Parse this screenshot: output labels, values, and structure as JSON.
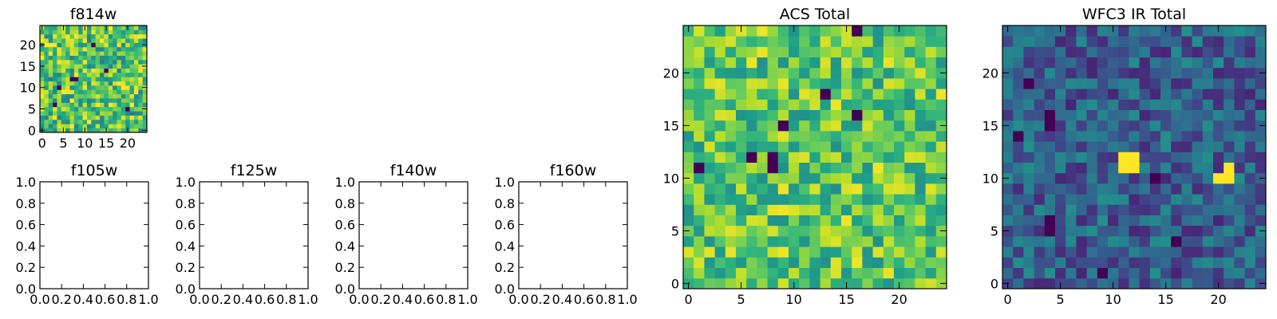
{
  "chart_data": [
    {
      "type": "heatmap",
      "title": "f814w",
      "colormap": "viridis",
      "grid_size": 25,
      "xlim": [
        -0.5,
        24.5
      ],
      "ylim": [
        -0.5,
        24.5
      ],
      "xticks": [
        0,
        5,
        10,
        15,
        20
      ],
      "yticks": [
        0,
        5,
        10,
        15,
        20
      ],
      "seed": 11,
      "base": 0.72,
      "spread": 0.28,
      "dark_cells": [
        [
          4,
          10
        ],
        [
          7,
          12
        ],
        [
          8,
          12
        ],
        [
          12,
          20
        ],
        [
          20,
          5
        ],
        [
          15,
          14
        ],
        [
          3,
          6
        ]
      ]
    },
    {
      "type": "heatmap",
      "title": "f105w",
      "empty": true,
      "xlim": [
        0,
        1
      ],
      "ylim": [
        0,
        1
      ],
      "xtick_labels": [
        "0.0",
        "0.2",
        "0.4",
        "0.6",
        "0.8",
        "1.0"
      ],
      "ytick_labels": [
        "0.0",
        "0.2",
        "0.4",
        "0.6",
        "0.8",
        "1.0"
      ]
    },
    {
      "type": "heatmap",
      "title": "f125w",
      "empty": true,
      "xlim": [
        0,
        1
      ],
      "ylim": [
        0,
        1
      ],
      "xtick_labels": [
        "0.0",
        "0.2",
        "0.4",
        "0.6",
        "0.8",
        "1.0"
      ],
      "ytick_labels": [
        "0.0",
        "0.2",
        "0.4",
        "0.6",
        "0.8",
        "1.0"
      ]
    },
    {
      "type": "heatmap",
      "title": "f140w",
      "empty": true,
      "xlim": [
        0,
        1
      ],
      "ylim": [
        0,
        1
      ],
      "xtick_labels": [
        "0.0",
        "0.2",
        "0.4",
        "0.6",
        "0.8",
        "1.0"
      ],
      "ytick_labels": [
        "0.0",
        "0.2",
        "0.4",
        "0.6",
        "0.8",
        "1.0"
      ]
    },
    {
      "type": "heatmap",
      "title": "f160w",
      "empty": true,
      "xlim": [
        0,
        1
      ],
      "ylim": [
        0,
        1
      ],
      "xtick_labels": [
        "0.0",
        "0.2",
        "0.4",
        "0.6",
        "0.8",
        "1.0"
      ],
      "ytick_labels": [
        "0.0",
        "0.2",
        "0.4",
        "0.6",
        "0.8",
        "1.0"
      ]
    },
    {
      "type": "heatmap",
      "title": "ACS Total",
      "colormap": "viridis",
      "grid_size": 25,
      "xlim": [
        -0.5,
        24.5
      ],
      "ylim": [
        -0.5,
        24.5
      ],
      "xticks": [
        0,
        5,
        10,
        15,
        20
      ],
      "yticks": [
        0,
        5,
        10,
        15,
        20
      ],
      "seed": 23,
      "base": 0.74,
      "spread": 0.24,
      "dark_cells": [
        [
          16,
          24
        ],
        [
          13,
          18
        ],
        [
          16,
          16
        ],
        [
          9,
          15
        ],
        [
          6,
          12
        ],
        [
          8,
          12
        ],
        [
          8,
          11
        ],
        [
          1,
          11
        ]
      ]
    },
    {
      "type": "heatmap",
      "title": "WFC3 IR Total",
      "colormap": "viridis",
      "grid_size": 25,
      "xlim": [
        -0.5,
        24.5
      ],
      "ylim": [
        -0.5,
        24.5
      ],
      "xticks": [
        0,
        5,
        10,
        15,
        20
      ],
      "yticks": [
        0,
        5,
        10,
        15,
        20
      ],
      "seed": 37,
      "base": 0.3,
      "spread": 0.2,
      "dark_cells": [
        [
          2,
          19
        ],
        [
          4,
          16
        ],
        [
          4,
          15
        ],
        [
          1,
          14
        ],
        [
          4,
          6
        ],
        [
          4,
          5
        ],
        [
          16,
          4
        ],
        [
          9,
          1
        ],
        [
          14,
          10
        ]
      ],
      "bright_cells": [
        [
          11,
          12
        ],
        [
          12,
          12
        ],
        [
          11,
          11
        ],
        [
          12,
          11
        ],
        [
          21,
          11
        ],
        [
          20,
          10
        ],
        [
          21,
          10
        ]
      ]
    }
  ]
}
